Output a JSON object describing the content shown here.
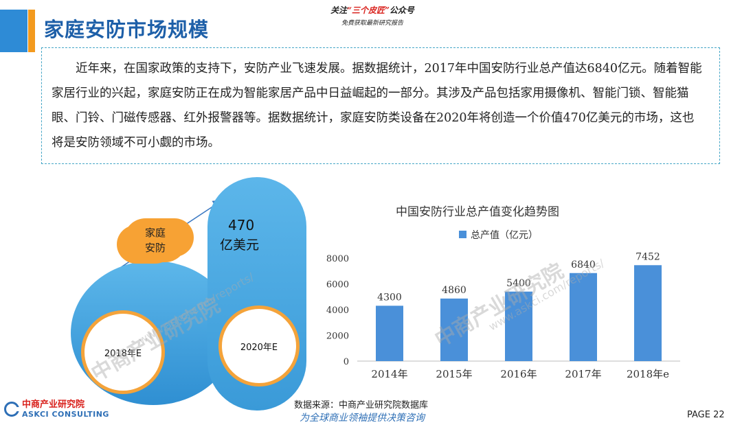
{
  "header": {
    "title": "家庭安防市场规模",
    "promo_line1_pre": "关注",
    "promo_line1_highlight": "“三个皮匠”",
    "promo_line1_post": "公众号",
    "promo_line2": "免费获取最新研究报告"
  },
  "summary": {
    "text": "近年来，在国家政策的支持下，安防产业飞速发展。据数据统计，2017年中国安防行业总产值达6840亿元。随着智能家居行业的兴起，家庭安防正在成为智能家居产品中日益崛起的一部分。其涉及产品包括家用摄像机、智能门锁、智能猫眼、门铃、门磁传感器、红外报警器等。据数据统计，家庭安防类设备在2020年将创造一个价值470亿美元的市场，这也将是安防领域不可小觑的市场。"
  },
  "illustration": {
    "cloud_label": "家庭安防",
    "big_value": "470",
    "big_unit": "亿美元",
    "left_circle_label": "2018年E",
    "right_circle_label": "2020年E",
    "colors": {
      "blue": "#3a9ad8",
      "orange": "#f4a33a"
    }
  },
  "watermark": {
    "brand": "中商产业研究院",
    "url": "www.askci.com/reports/"
  },
  "chart_data": {
    "type": "bar",
    "title": "中国安防行业总产值变化趋势图",
    "categories": [
      "2014年",
      "2015年",
      "2016年",
      "2017年",
      "2018年e"
    ],
    "series": [
      {
        "name": "总产值（亿元）",
        "values": [
          4300,
          4860,
          5400,
          6840,
          7452
        ],
        "color": "#4a90d9"
      }
    ],
    "data_labels": [
      "4300",
      "4860",
      "5400",
      "6840",
      "7452"
    ],
    "ylim": [
      0,
      8000
    ],
    "yticks": [
      0,
      2000,
      4000,
      6000,
      8000
    ],
    "grid": false,
    "legend": "top"
  },
  "footer": {
    "source": "数据来源：中商产业研究院数据库",
    "tagline": "为全球商业领袖提供决策咨询",
    "page": "PAGE 22",
    "logo_cn": "中商产业研究院",
    "logo_en": "ASKCI CONSULTING"
  }
}
